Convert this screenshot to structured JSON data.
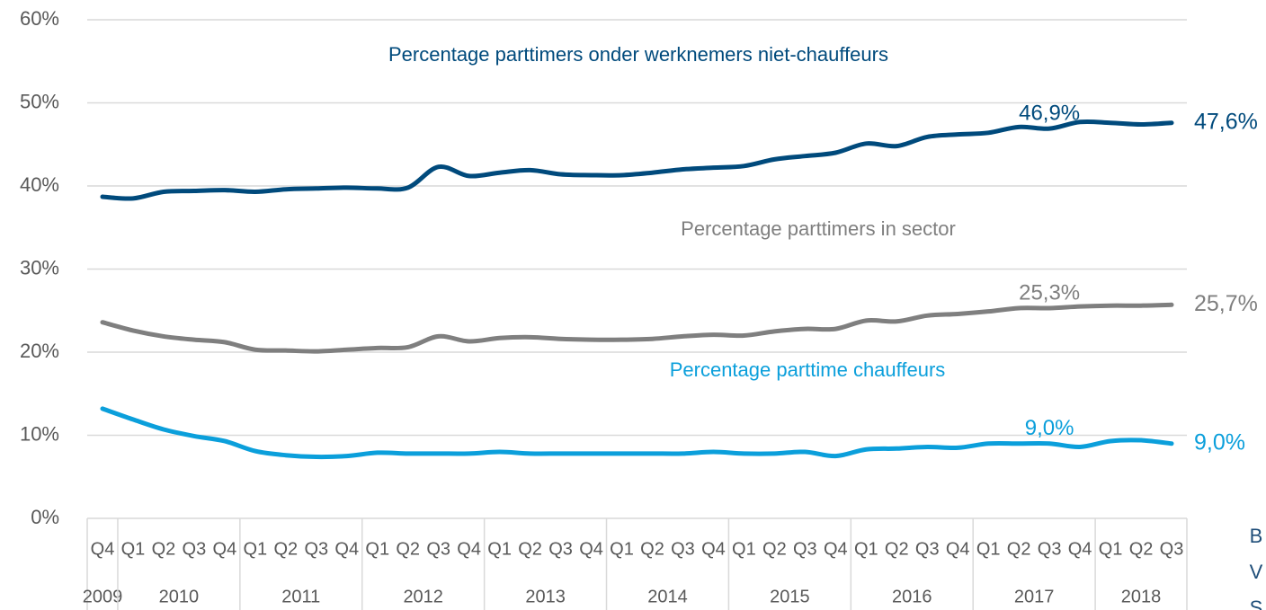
{
  "chart_data": {
    "type": "line",
    "categories": [
      "Q4",
      "Q1",
      "Q2",
      "Q3",
      "Q4",
      "Q1",
      "Q2",
      "Q3",
      "Q4",
      "Q1",
      "Q2",
      "Q3",
      "Q4",
      "Q1",
      "Q2",
      "Q3",
      "Q4",
      "Q1",
      "Q2",
      "Q3",
      "Q4",
      "Q1",
      "Q2",
      "Q3",
      "Q4",
      "Q1",
      "Q2",
      "Q3",
      "Q4",
      "Q1",
      "Q2",
      "Q3",
      "Q4",
      "Q1",
      "Q2",
      "Q3"
    ],
    "year_groups": [
      {
        "label": "2009",
        "count": 1
      },
      {
        "label": "2010",
        "count": 4
      },
      {
        "label": "2011",
        "count": 4
      },
      {
        "label": "2012",
        "count": 4
      },
      {
        "label": "2013",
        "count": 4
      },
      {
        "label": "2014",
        "count": 4
      },
      {
        "label": "2015",
        "count": 4
      },
      {
        "label": "2016",
        "count": 4
      },
      {
        "label": "2017",
        "count": 4
      },
      {
        "label": "2018",
        "count": 3
      }
    ],
    "series": [
      {
        "name": "Percentage parttimers onder werknemers niet-chauffeurs",
        "color": "#004a7c",
        "values": [
          38.7,
          38.5,
          39.3,
          39.4,
          39.5,
          39.3,
          39.6,
          39.7,
          39.8,
          39.7,
          39.8,
          42.3,
          41.2,
          41.6,
          41.9,
          41.4,
          41.3,
          41.3,
          41.6,
          42.0,
          42.2,
          42.4,
          43.2,
          43.6,
          44.0,
          45.1,
          44.8,
          45.9,
          46.2,
          46.4,
          47.1,
          46.9,
          47.7,
          47.6,
          47.4,
          47.6
        ],
        "value_labels": [
          null,
          null,
          null,
          null,
          null,
          null,
          null,
          null,
          null,
          null,
          null,
          null,
          null,
          null,
          null,
          null,
          null,
          null,
          null,
          null,
          null,
          null,
          null,
          null,
          null,
          null,
          null,
          null,
          null,
          null,
          null,
          "46,9%",
          null,
          null,
          null,
          "47,6%"
        ]
      },
      {
        "name": "Percentage parttimers in sector",
        "color": "#7f7f7f",
        "values": [
          23.6,
          22.6,
          21.9,
          21.5,
          21.2,
          20.3,
          20.2,
          20.1,
          20.3,
          20.5,
          20.6,
          21.9,
          21.3,
          21.7,
          21.8,
          21.6,
          21.5,
          21.5,
          21.6,
          21.9,
          22.1,
          22.0,
          22.5,
          22.8,
          22.8,
          23.8,
          23.7,
          24.4,
          24.6,
          24.9,
          25.3,
          25.3,
          25.5,
          25.6,
          25.6,
          25.7
        ],
        "value_labels": [
          null,
          null,
          null,
          null,
          null,
          null,
          null,
          null,
          null,
          null,
          null,
          null,
          null,
          null,
          null,
          null,
          null,
          null,
          null,
          null,
          null,
          null,
          null,
          null,
          null,
          null,
          null,
          null,
          null,
          null,
          null,
          "25,3%",
          null,
          null,
          null,
          "25,7%"
        ]
      },
      {
        "name": "Percentage parttime chauffeurs",
        "color": "#0b9fdb",
        "values": [
          13.2,
          11.9,
          10.7,
          9.9,
          9.3,
          8.1,
          7.6,
          7.4,
          7.5,
          7.9,
          7.8,
          7.8,
          7.8,
          8.0,
          7.8,
          7.8,
          7.8,
          7.8,
          7.8,
          7.8,
          8.0,
          7.8,
          7.8,
          8.0,
          7.5,
          8.3,
          8.4,
          8.6,
          8.5,
          9.0,
          9.0,
          9.0,
          8.6,
          9.3,
          9.4,
          9.0
        ],
        "value_labels": [
          null,
          null,
          null,
          null,
          null,
          null,
          null,
          null,
          null,
          null,
          null,
          null,
          null,
          null,
          null,
          null,
          null,
          null,
          null,
          null,
          null,
          null,
          null,
          null,
          null,
          null,
          null,
          null,
          null,
          null,
          null,
          "9,0%",
          null,
          null,
          null,
          "9,0%"
        ]
      }
    ],
    "ylim": [
      0,
      60
    ],
    "yticks": [
      {
        "value": 0,
        "label": "0%"
      },
      {
        "value": 10,
        "label": "10%"
      },
      {
        "value": 20,
        "label": "20%"
      },
      {
        "value": 30,
        "label": "30%"
      },
      {
        "value": 40,
        "label": "40%"
      },
      {
        "value": 50,
        "label": "50%"
      },
      {
        "value": 60,
        "label": "60%"
      }
    ],
    "grid": true,
    "side_text": [
      "B",
      "V",
      "S"
    ]
  }
}
